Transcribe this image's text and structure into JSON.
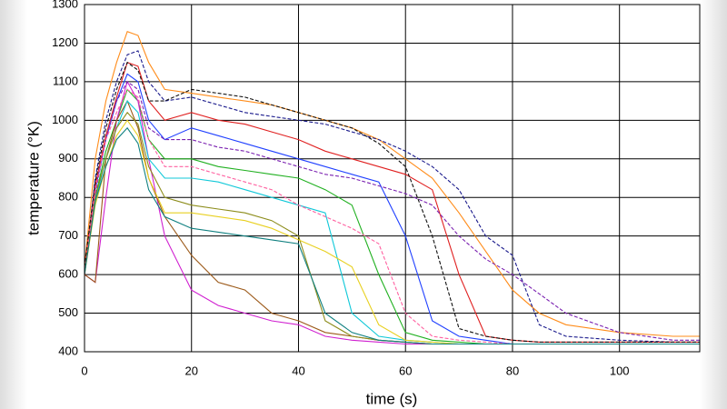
{
  "chart_data": {
    "type": "line",
    "xlabel": "time (s)",
    "ylabel": "temperature (°K)",
    "xlim": [
      0,
      115
    ],
    "ylim": [
      400,
      1300
    ],
    "xticks": [
      0,
      20,
      40,
      60,
      80,
      100
    ],
    "yticks": [
      400,
      500,
      600,
      700,
      800,
      900,
      1000,
      1100,
      1200,
      1300
    ],
    "grid": true,
    "x": [
      0,
      2,
      4,
      6,
      8,
      10,
      12,
      15,
      20,
      25,
      30,
      35,
      40,
      45,
      50,
      55,
      60,
      65,
      70,
      75,
      80,
      85,
      90,
      100,
      110,
      115
    ],
    "series": [
      {
        "color": "#ff8c1a",
        "dash": false,
        "values": [
          620,
          900,
          1050,
          1150,
          1230,
          1220,
          1150,
          1080,
          1070,
          1060,
          1050,
          1040,
          1020,
          1000,
          980,
          950,
          900,
          850,
          760,
          660,
          560,
          500,
          470,
          450,
          440,
          440
        ]
      },
      {
        "color": "#1a1a8c",
        "dash": true,
        "values": [
          600,
          850,
          1000,
          1100,
          1170,
          1180,
          1100,
          1050,
          1060,
          1040,
          1020,
          1010,
          1000,
          990,
          970,
          950,
          920,
          880,
          820,
          700,
          650,
          470,
          440,
          430,
          425,
          425
        ]
      },
      {
        "color": "#2040ff",
        "dash": false,
        "values": [
          610,
          820,
          950,
          1050,
          1120,
          1100,
          1000,
          950,
          980,
          960,
          940,
          920,
          900,
          880,
          860,
          840,
          700,
          480,
          440,
          430,
          420,
          420,
          420,
          420,
          420,
          420
        ]
      },
      {
        "color": "#20b020",
        "dash": false,
        "values": [
          600,
          800,
          920,
          1000,
          1080,
          1050,
          950,
          900,
          900,
          880,
          870,
          860,
          850,
          820,
          780,
          600,
          450,
          430,
          425,
          420,
          420,
          420,
          420,
          420,
          420,
          420
        ]
      },
      {
        "color": "#e02020",
        "dash": false,
        "values": [
          620,
          830,
          960,
          1060,
          1150,
          1140,
          1050,
          1000,
          1020,
          1000,
          990,
          970,
          950,
          920,
          900,
          880,
          860,
          820,
          600,
          440,
          430,
          425,
          425,
          425,
          425,
          425
        ]
      },
      {
        "color": "#d020d0",
        "dash": false,
        "values": [
          600,
          580,
          800,
          1000,
          1100,
          1050,
          900,
          700,
          560,
          520,
          500,
          480,
          470,
          440,
          430,
          425,
          420,
          420,
          420,
          420,
          420,
          420,
          420,
          420,
          420,
          420
        ]
      },
      {
        "color": "#9c5a1a",
        "dash": false,
        "values": [
          600,
          580,
          900,
          1000,
          1050,
          980,
          850,
          750,
          650,
          580,
          560,
          500,
          480,
          450,
          440,
          430,
          425,
          420,
          420,
          420,
          420,
          420,
          420,
          420,
          420,
          420
        ]
      },
      {
        "color": "#10c8d8",
        "dash": false,
        "values": [
          610,
          790,
          900,
          980,
          1050,
          1020,
          900,
          850,
          850,
          840,
          820,
          800,
          780,
          760,
          500,
          440,
          430,
          425,
          420,
          420,
          420,
          420,
          420,
          420,
          420,
          420
        ]
      },
      {
        "color": "#7a20b0",
        "dash": true,
        "values": [
          600,
          810,
          950,
          1050,
          1100,
          1080,
          980,
          950,
          950,
          930,
          920,
          900,
          880,
          860,
          850,
          830,
          810,
          780,
          700,
          640,
          600,
          550,
          500,
          450,
          430,
          430
        ]
      },
      {
        "color": "#8c8c1a",
        "dash": false,
        "values": [
          610,
          800,
          900,
          980,
          1020,
          990,
          880,
          800,
          780,
          770,
          760,
          740,
          700,
          480,
          440,
          430,
          425,
          420,
          420,
          420,
          420,
          420,
          420,
          420,
          420,
          420
        ]
      },
      {
        "color": "#111111",
        "dash": true,
        "values": [
          620,
          840,
          980,
          1080,
          1150,
          1130,
          1050,
          1050,
          1080,
          1070,
          1060,
          1040,
          1020,
          1000,
          980,
          940,
          880,
          700,
          460,
          440,
          430,
          425,
          425,
          425,
          425,
          425
        ]
      },
      {
        "color": "#e8d020",
        "dash": false,
        "values": [
          600,
          780,
          880,
          960,
          1000,
          960,
          850,
          760,
          760,
          750,
          740,
          720,
          690,
          660,
          620,
          470,
          430,
          425,
          420,
          420,
          420,
          420,
          420,
          420,
          420,
          420
        ]
      },
      {
        "color": "#ff60a0",
        "dash": true,
        "values": [
          600,
          820,
          950,
          1020,
          1080,
          1060,
          950,
          880,
          880,
          860,
          840,
          820,
          780,
          750,
          720,
          680,
          500,
          440,
          430,
          425,
          420,
          420,
          420,
          420,
          420,
          420
        ]
      },
      {
        "color": "#108080",
        "dash": false,
        "values": [
          600,
          790,
          880,
          950,
          980,
          940,
          820,
          750,
          720,
          710,
          700,
          690,
          680,
          500,
          450,
          430,
          425,
          420,
          420,
          420,
          420,
          420,
          420,
          420,
          420,
          420
        ]
      }
    ]
  }
}
